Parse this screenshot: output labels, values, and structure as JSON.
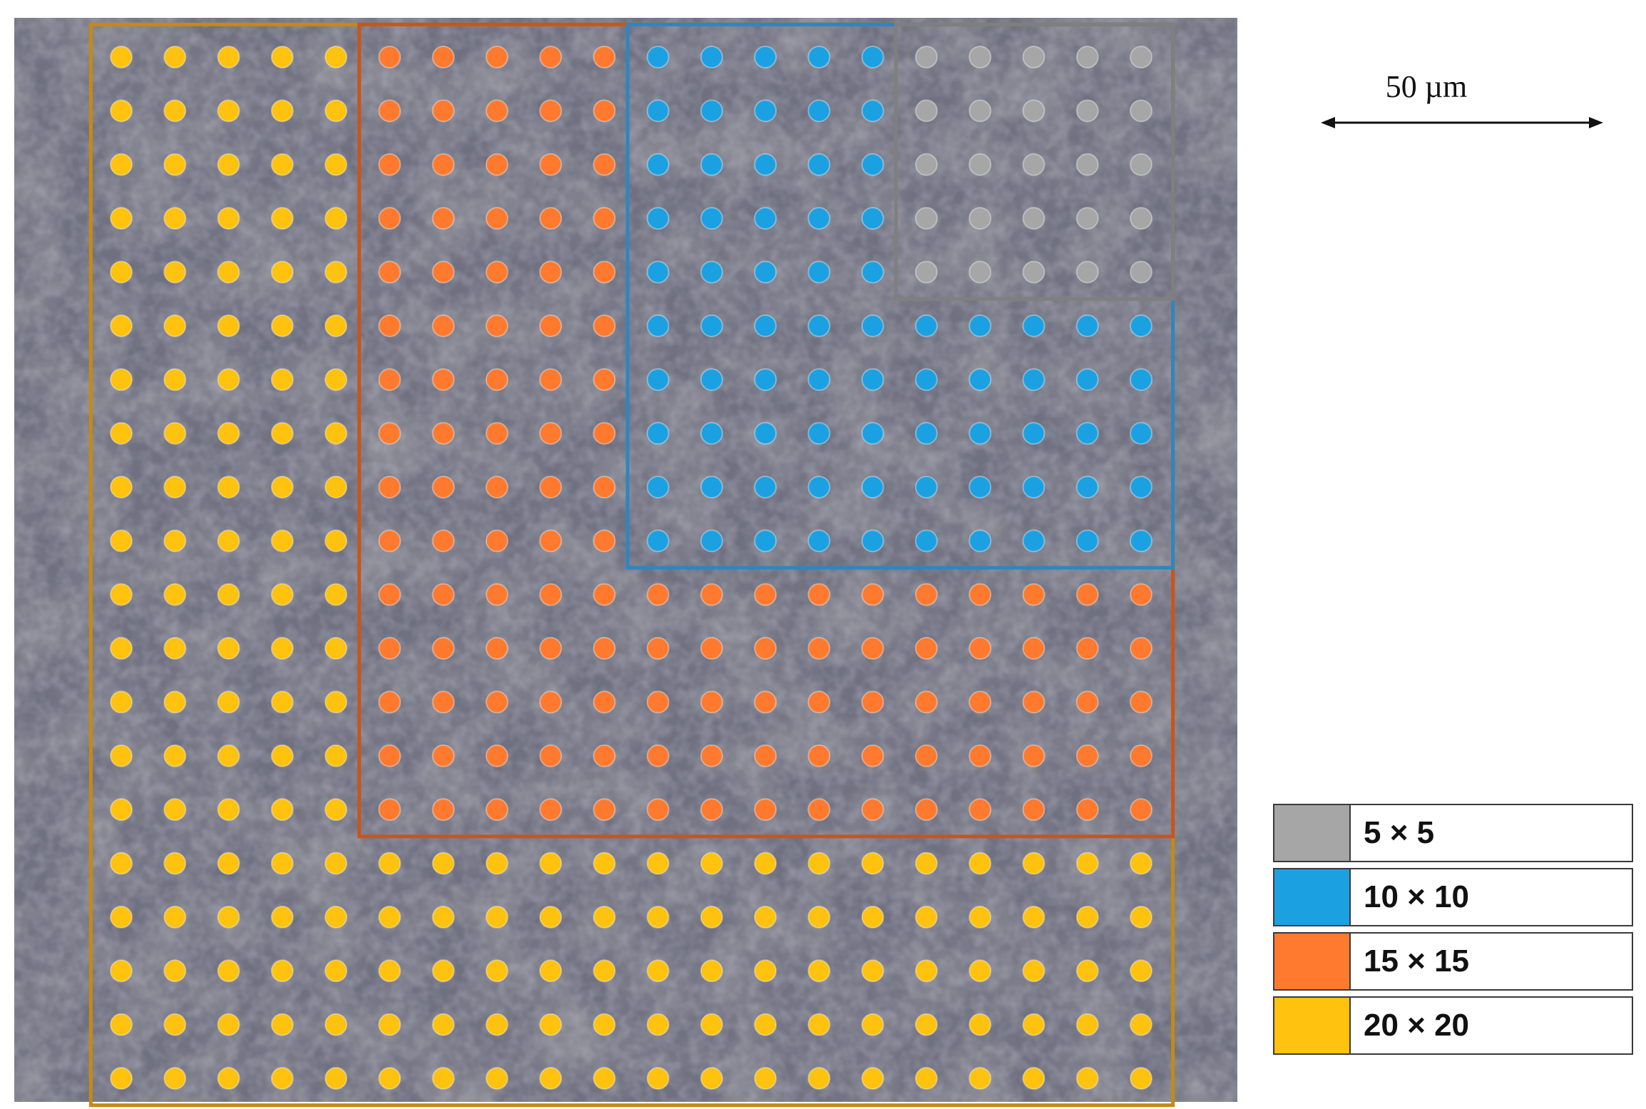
{
  "scale_bar": {
    "label": "50 µm"
  },
  "grids": [
    {
      "label": "5 × 5",
      "color": "#a6a6a6",
      "frame_color": "#7f7f7f",
      "rows": 5,
      "cols": 5
    },
    {
      "label": "10 × 10",
      "color": "#1ba1e2",
      "frame_color": "#2e86c1",
      "rows": 10,
      "cols": 10
    },
    {
      "label": "15 × 15",
      "color": "#ff7a2e",
      "frame_color": "#c8551c",
      "rows": 15,
      "cols": 15
    },
    {
      "label": "20 × 20",
      "color": "#ffc20e",
      "frame_color": "#c58a12",
      "rows": 20,
      "cols": 20
    }
  ],
  "legend": {
    "items": [
      {
        "label": "5 × 5",
        "swatch": "#a6a6a6"
      },
      {
        "label": "10 × 10",
        "swatch": "#1ba1e2"
      },
      {
        "label": "15 × 15",
        "swatch": "#ff7a2e"
      },
      {
        "label": "20 × 20",
        "swatch": "#ffc20e"
      }
    ]
  },
  "background": {
    "description_color": "#6e6e78"
  }
}
